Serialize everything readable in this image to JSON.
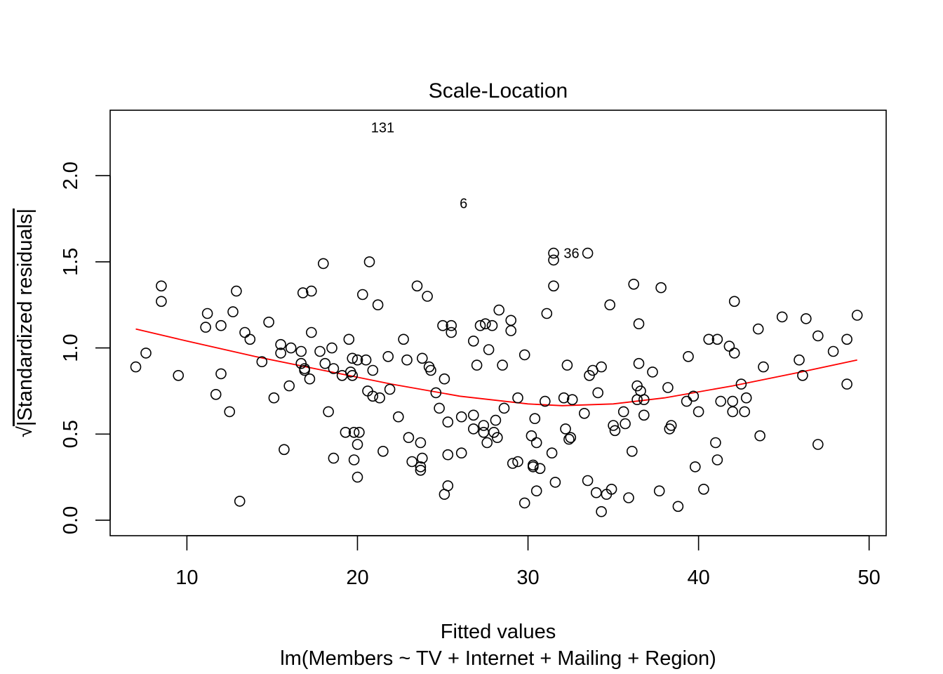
{
  "chart_data": {
    "type": "scatter",
    "title": "Scale-Location",
    "xlabel": "Fitted values",
    "subtitle": "lm(Members ~ TV + Internet + Mailing + Region)",
    "ylabel_root": "√",
    "ylabel_text": "|Standardized residuals|",
    "xlim": [
      5.5,
      51
    ],
    "ylim": [
      -0.09,
      2.38
    ],
    "x_ticks": [
      10,
      20,
      30,
      40,
      50
    ],
    "x_tick_labels": [
      "10",
      "20",
      "30",
      "40",
      "50"
    ],
    "y_ticks": [
      0.0,
      0.5,
      1.0,
      1.5,
      2.0
    ],
    "y_tick_labels": [
      "0.0",
      "0.5",
      "1.0",
      "1.5",
      "2.0"
    ],
    "grid": false,
    "colors": {
      "points": "#000000",
      "smooth": "#ff0000"
    },
    "labeled_points": [
      {
        "label": "131",
        "x": 20.3,
        "y": 2.28
      },
      {
        "label": "6",
        "x": 25.5,
        "y": 1.84
      },
      {
        "label": "36",
        "x": 31.6,
        "y": 1.55
      }
    ],
    "smooth_line": {
      "x": [
        7.0,
        10,
        14,
        18,
        22,
        26,
        30,
        32,
        35,
        38,
        42,
        46,
        49.3
      ],
      "y": [
        1.11,
        1.04,
        0.95,
        0.87,
        0.79,
        0.72,
        0.675,
        0.665,
        0.675,
        0.71,
        0.78,
        0.86,
        0.93
      ]
    },
    "points": [
      [
        7.0,
        0.89
      ],
      [
        7.6,
        0.97
      ],
      [
        8.5,
        1.36
      ],
      [
        8.5,
        1.27
      ],
      [
        9.5,
        0.84
      ],
      [
        11.1,
        1.12
      ],
      [
        11.2,
        1.2
      ],
      [
        11.7,
        0.73
      ],
      [
        12.0,
        1.13
      ],
      [
        12.0,
        0.85
      ],
      [
        12.5,
        0.63
      ],
      [
        12.7,
        1.21
      ],
      [
        12.9,
        1.33
      ],
      [
        13.1,
        0.11
      ],
      [
        13.4,
        1.09
      ],
      [
        13.7,
        1.05
      ],
      [
        14.4,
        0.92
      ],
      [
        14.8,
        1.15
      ],
      [
        15.1,
        0.71
      ],
      [
        15.5,
        1.02
      ],
      [
        15.5,
        0.97
      ],
      [
        15.7,
        0.41
      ],
      [
        16.0,
        0.78
      ],
      [
        16.1,
        1.0
      ],
      [
        16.7,
        0.98
      ],
      [
        16.7,
        0.91
      ],
      [
        16.8,
        1.32
      ],
      [
        16.9,
        0.88
      ],
      [
        16.9,
        0.87
      ],
      [
        17.2,
        0.82
      ],
      [
        17.3,
        1.33
      ],
      [
        17.3,
        1.09
      ],
      [
        17.8,
        0.98
      ],
      [
        18.0,
        1.49
      ],
      [
        18.1,
        0.91
      ],
      [
        18.3,
        0.63
      ],
      [
        18.5,
        1.0
      ],
      [
        18.6,
        0.36
      ],
      [
        18.6,
        0.88
      ],
      [
        19.1,
        0.84
      ],
      [
        19.3,
        0.51
      ],
      [
        19.5,
        1.05
      ],
      [
        19.6,
        0.86
      ],
      [
        19.7,
        0.94
      ],
      [
        19.7,
        0.84
      ],
      [
        19.8,
        0.51
      ],
      [
        19.8,
        0.35
      ],
      [
        20.0,
        0.93
      ],
      [
        20.0,
        0.44
      ],
      [
        20.0,
        0.25
      ],
      [
        20.1,
        0.51
      ],
      [
        20.3,
        1.31
      ],
      [
        20.5,
        0.93
      ],
      [
        20.6,
        0.75
      ],
      [
        20.7,
        1.5
      ],
      [
        20.9,
        0.72
      ],
      [
        20.9,
        0.87
      ],
      [
        21.2,
        1.25
      ],
      [
        21.3,
        0.71
      ],
      [
        21.5,
        0.4
      ],
      [
        21.8,
        0.95
      ],
      [
        21.9,
        0.76
      ],
      [
        22.4,
        0.6
      ],
      [
        22.7,
        1.05
      ],
      [
        22.9,
        0.93
      ],
      [
        23.0,
        0.48
      ],
      [
        23.2,
        0.34
      ],
      [
        23.5,
        1.36
      ],
      [
        23.7,
        0.45
      ],
      [
        23.7,
        0.31
      ],
      [
        23.7,
        0.29
      ],
      [
        23.8,
        0.36
      ],
      [
        23.8,
        0.94
      ],
      [
        24.1,
        1.3
      ],
      [
        24.2,
        0.89
      ],
      [
        24.3,
        0.87
      ],
      [
        24.6,
        0.74
      ],
      [
        24.8,
        0.65
      ],
      [
        25.0,
        1.13
      ],
      [
        25.1,
        0.82
      ],
      [
        25.1,
        0.15
      ],
      [
        25.3,
        0.2
      ],
      [
        25.3,
        0.57
      ],
      [
        25.3,
        0.38
      ],
      [
        25.5,
        1.13
      ],
      [
        25.5,
        1.09
      ],
      [
        26.1,
        0.6
      ],
      [
        26.1,
        0.39
      ],
      [
        26.8,
        1.04
      ],
      [
        26.8,
        0.61
      ],
      [
        26.8,
        0.53
      ],
      [
        27.0,
        0.9
      ],
      [
        27.2,
        1.13
      ],
      [
        27.4,
        0.55
      ],
      [
        27.4,
        0.51
      ],
      [
        27.5,
        1.14
      ],
      [
        27.6,
        0.45
      ],
      [
        27.7,
        0.99
      ],
      [
        27.9,
        1.13
      ],
      [
        28.0,
        0.51
      ],
      [
        28.1,
        0.58
      ],
      [
        28.2,
        0.48
      ],
      [
        28.3,
        1.22
      ],
      [
        28.5,
        0.9
      ],
      [
        28.6,
        0.65
      ],
      [
        29.0,
        1.16
      ],
      [
        29.0,
        1.1
      ],
      [
        29.1,
        0.33
      ],
      [
        29.4,
        0.71
      ],
      [
        29.4,
        0.34
      ],
      [
        29.8,
        0.96
      ],
      [
        29.8,
        0.1
      ],
      [
        30.2,
        0.49
      ],
      [
        30.3,
        0.32
      ],
      [
        30.3,
        0.31
      ],
      [
        30.4,
        0.59
      ],
      [
        30.5,
        0.45
      ],
      [
        30.5,
        0.17
      ],
      [
        30.7,
        0.3
      ],
      [
        31.0,
        0.69
      ],
      [
        31.1,
        1.2
      ],
      [
        31.4,
        0.39
      ],
      [
        31.5,
        1.55
      ],
      [
        31.5,
        1.51
      ],
      [
        31.5,
        1.36
      ],
      [
        31.6,
        0.22
      ],
      [
        32.1,
        0.71
      ],
      [
        32.2,
        0.53
      ],
      [
        32.3,
        0.9
      ],
      [
        32.4,
        0.47
      ],
      [
        32.5,
        0.48
      ],
      [
        32.6,
        0.7
      ],
      [
        33.3,
        0.62
      ],
      [
        33.5,
        0.23
      ],
      [
        33.5,
        1.55
      ],
      [
        33.6,
        0.84
      ],
      [
        33.8,
        0.87
      ],
      [
        34.0,
        0.16
      ],
      [
        34.1,
        0.74
      ],
      [
        34.3,
        0.05
      ],
      [
        34.3,
        0.89
      ],
      [
        34.6,
        0.15
      ],
      [
        34.8,
        1.25
      ],
      [
        34.9,
        0.18
      ],
      [
        35.0,
        0.55
      ],
      [
        35.1,
        0.52
      ],
      [
        35.6,
        0.63
      ],
      [
        35.7,
        0.56
      ],
      [
        35.9,
        0.13
      ],
      [
        36.1,
        0.4
      ],
      [
        36.2,
        1.37
      ],
      [
        36.4,
        0.78
      ],
      [
        36.4,
        0.7
      ],
      [
        36.5,
        1.14
      ],
      [
        36.5,
        0.91
      ],
      [
        36.6,
        0.75
      ],
      [
        36.8,
        0.61
      ],
      [
        36.8,
        0.7
      ],
      [
        37.3,
        0.86
      ],
      [
        37.7,
        0.17
      ],
      [
        37.8,
        1.35
      ],
      [
        38.2,
        0.77
      ],
      [
        38.3,
        0.53
      ],
      [
        38.4,
        0.55
      ],
      [
        38.8,
        0.08
      ],
      [
        39.3,
        0.69
      ],
      [
        39.4,
        0.95
      ],
      [
        39.7,
        0.72
      ],
      [
        39.8,
        0.31
      ],
      [
        40.0,
        0.63
      ],
      [
        40.3,
        0.18
      ],
      [
        40.6,
        1.05
      ],
      [
        41.0,
        0.45
      ],
      [
        41.1,
        0.35
      ],
      [
        41.1,
        1.05
      ],
      [
        41.3,
        0.69
      ],
      [
        41.8,
        1.01
      ],
      [
        42.0,
        0.69
      ],
      [
        42.0,
        0.63
      ],
      [
        42.1,
        1.27
      ],
      [
        42.1,
        0.97
      ],
      [
        42.5,
        0.79
      ],
      [
        42.7,
        0.63
      ],
      [
        42.8,
        0.71
      ],
      [
        43.5,
        1.11
      ],
      [
        43.6,
        0.49
      ],
      [
        43.8,
        0.89
      ],
      [
        44.9,
        1.18
      ],
      [
        45.9,
        0.93
      ],
      [
        46.1,
        0.84
      ],
      [
        46.3,
        1.17
      ],
      [
        47.0,
        0.44
      ],
      [
        47.0,
        1.07
      ],
      [
        47.9,
        0.98
      ],
      [
        48.7,
        1.05
      ],
      [
        48.7,
        0.79
      ],
      [
        49.3,
        1.19
      ]
    ]
  }
}
